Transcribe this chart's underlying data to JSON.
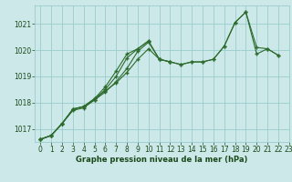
{
  "background_color": "#cce8e8",
  "plot_bg_color": "#cce8e8",
  "grid_color": "#99cccc",
  "line_color": "#2d6b2d",
  "marker_color": "#2d6b2d",
  "xlabel": "Graphe pression niveau de la mer (hPa)",
  "xlabel_color": "#1a4a1a",
  "ylabel_color": "#1a4a1a",
  "ylim": [
    1016.5,
    1021.7
  ],
  "xlim": [
    -0.5,
    23
  ],
  "yticks": [
    1017,
    1018,
    1019,
    1020,
    1021
  ],
  "xticks": [
    0,
    1,
    2,
    3,
    4,
    5,
    6,
    7,
    8,
    9,
    10,
    11,
    12,
    13,
    14,
    15,
    16,
    17,
    18,
    19,
    20,
    21,
    22,
    23
  ],
  "series": [
    [
      1016.6,
      1016.75,
      1017.2,
      1017.7,
      1017.8,
      1018.1,
      1018.4,
      1018.8,
      1019.3,
      1019.95,
      1020.3,
      1019.65,
      1019.55,
      1019.45,
      1019.55,
      1019.55,
      1019.65,
      1020.15,
      1021.05,
      1021.45,
      1019.85,
      1020.05,
      1019.8,
      null
    ],
    [
      1016.6,
      1016.75,
      1017.2,
      1017.75,
      1017.85,
      1018.1,
      1018.5,
      1019.0,
      1019.7,
      1020.05,
      1020.35,
      null,
      null,
      null,
      null,
      null,
      null,
      null,
      null,
      null,
      null,
      null,
      null,
      null
    ],
    [
      1016.6,
      1016.75,
      1017.2,
      1017.75,
      1017.85,
      1018.15,
      1018.6,
      1019.2,
      1019.85,
      1020.05,
      1020.35,
      1019.65,
      1019.55,
      null,
      null,
      null,
      null,
      null,
      null,
      null,
      null,
      null,
      null,
      null
    ],
    [
      1016.6,
      1016.75,
      1017.2,
      1017.75,
      1017.85,
      1018.15,
      1018.45,
      1018.75,
      1019.15,
      1019.65,
      1020.05,
      1019.65,
      1019.55,
      1019.45,
      1019.55,
      1019.55,
      1019.65,
      1020.15,
      1021.05,
      1021.45,
      1020.1,
      1020.05,
      1019.8,
      null
    ]
  ]
}
